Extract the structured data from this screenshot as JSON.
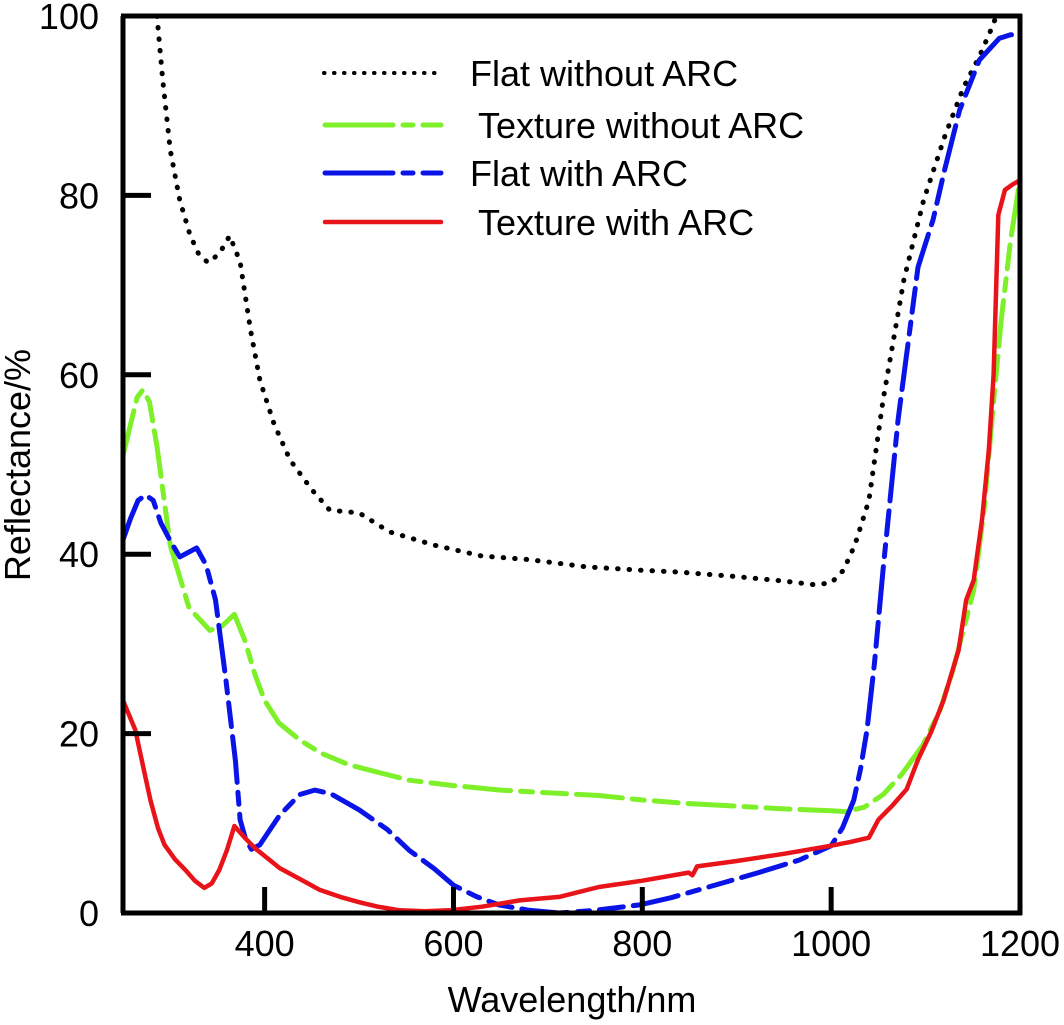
{
  "chart_data": {
    "type": "line",
    "title": "",
    "xlabel": "Wavelength/nm",
    "ylabel": "Reflectance/%",
    "xlim": [
      250,
      1200
    ],
    "ylim": [
      0,
      100
    ],
    "xticks": [
      400,
      600,
      800,
      1000,
      1200
    ],
    "yticks": [
      0,
      20,
      40,
      60,
      80,
      100
    ],
    "xtick_labels": [
      "400",
      "600",
      "800",
      "1000",
      "1200"
    ],
    "ytick_labels": [
      "0",
      "20",
      "40",
      "60",
      "80",
      "100"
    ],
    "grid": false,
    "legend_position": "top-center",
    "series": [
      {
        "name": "Flat without ARC",
        "color": "#000000",
        "style": "dotted",
        "x": [
          286,
          292,
          300,
          310,
          321,
          330,
          340,
          352,
          363,
          374,
          385,
          395,
          410,
          427,
          450,
          469,
          500,
          532,
          580,
          630,
          680,
          740,
          800,
          839,
          900,
          950,
          982,
          1000,
          1013,
          1025,
          1040,
          1055,
          1077,
          1098,
          1120,
          1140,
          1157,
          1169,
          1175
        ],
        "y": [
          100,
          92.9,
          85.1,
          79.5,
          75.6,
          73.5,
          72.5,
          73.5,
          75.5,
          72.6,
          65,
          59.4,
          54.5,
          50.5,
          47.2,
          44.9,
          44.6,
          42.5,
          41,
          39.8,
          39.4,
          38.6,
          38.2,
          38,
          37.5,
          37,
          36.6,
          36.8,
          38.2,
          41,
          46,
          57.2,
          70.6,
          79.5,
          86.5,
          92,
          95.5,
          98.4,
          100
        ]
      },
      {
        "name": "Texture without ARC",
        "color": "#7ef02a",
        "style": "dashdot",
        "x": [
          250,
          258,
          265,
          271,
          278,
          286,
          300,
          320,
          342,
          355,
          368,
          379,
          390,
          400,
          415,
          437,
          460,
          490,
          553,
          600,
          650,
          700,
          754,
          800,
          850,
          902,
          950,
          1000,
          1016,
          1035,
          1055,
          1075,
          1097,
          1115,
          1129,
          1140,
          1151,
          1162,
          1172,
          1180,
          1190,
          1200
        ],
        "y": [
          51,
          54.5,
          57.5,
          58.3,
          57,
          52,
          41,
          34,
          31.5,
          32,
          33.3,
          30.4,
          26.5,
          23.7,
          21.2,
          19.3,
          17.8,
          16.5,
          14.8,
          14.2,
          13.7,
          13.4,
          13.1,
          12.6,
          12.2,
          11.9,
          11.6,
          11.4,
          11.3,
          11.8,
          13.2,
          15.5,
          18.7,
          22.5,
          27.1,
          31.5,
          36,
          45,
          57,
          66,
          75,
          81.8
        ]
      },
      {
        "name": "Flat with ARC",
        "color": "#0a14e6",
        "style": "dashdot",
        "x": [
          250,
          258,
          266,
          274,
          282,
          290,
          300,
          310,
          319,
          328,
          338,
          348,
          359,
          369,
          374,
          380,
          386,
          395,
          405,
          416,
          437,
          453,
          470,
          500,
          530,
          553,
          580,
          600,
          625,
          648,
          680,
          712,
          750,
          797,
          830,
          860,
          890,
          923,
          966,
          1000,
          1012,
          1024,
          1031,
          1038,
          1046,
          1055,
          1071,
          1092,
          1108,
          1120,
          1136,
          1157,
          1178,
          1190,
          1200
        ],
        "y": [
          41.6,
          44,
          46,
          46.6,
          46,
          43.5,
          41.5,
          39.7,
          40.2,
          40.7,
          38.8,
          34.9,
          26,
          17,
          10.4,
          8.2,
          7.1,
          7.6,
          9.2,
          10.9,
          13.2,
          13.7,
          13.3,
          11.5,
          9.3,
          7,
          4.9,
          3.1,
          1.8,
          0.9,
          0.3,
          0,
          0.3,
          0.9,
          1.7,
          2.6,
          3.5,
          4.5,
          5.9,
          7.5,
          9.5,
          12.6,
          16,
          20.4,
          28,
          38.3,
          55.1,
          72,
          77.3,
          82.8,
          89.5,
          95.1,
          97.5,
          97.9,
          97.9
        ]
      },
      {
        "name": "Texture with ARC",
        "color": "#e8141a",
        "style": "solid",
        "x": [
          250,
          263,
          271,
          279,
          287,
          294,
          305,
          316,
          326,
          336,
          344,
          352,
          360,
          368,
          378,
          390,
          403,
          416,
          437,
          458,
          480,
          500,
          520,
          543,
          570,
          596,
          630,
          670,
          712,
          754,
          800,
          849,
          853,
          858,
          900,
          950,
          1000,
          1020,
          1040,
          1050,
          1065,
          1080,
          1092,
          1106,
          1119,
          1135,
          1143,
          1151,
          1160,
          1167,
          1172,
          1177,
          1184,
          1192,
          1200
        ],
        "y": [
          23.7,
          20.4,
          16.5,
          12.6,
          9.5,
          7.6,
          6,
          4.8,
          3.6,
          2.8,
          3.3,
          4.8,
          7,
          9.7,
          8.5,
          7.2,
          6.1,
          5,
          3.8,
          2.6,
          1.8,
          1.2,
          0.7,
          0.3,
          0.2,
          0.3,
          0.7,
          1.4,
          1.8,
          2.9,
          3.6,
          4.5,
          4.2,
          5.2,
          5.8,
          6.6,
          7.5,
          7.9,
          8.4,
          10.4,
          12,
          13.8,
          17.1,
          20.2,
          23.7,
          29.3,
          34.9,
          37.1,
          44,
          51.6,
          60,
          77.8,
          80.6,
          81.2,
          81.7
        ]
      }
    ]
  }
}
